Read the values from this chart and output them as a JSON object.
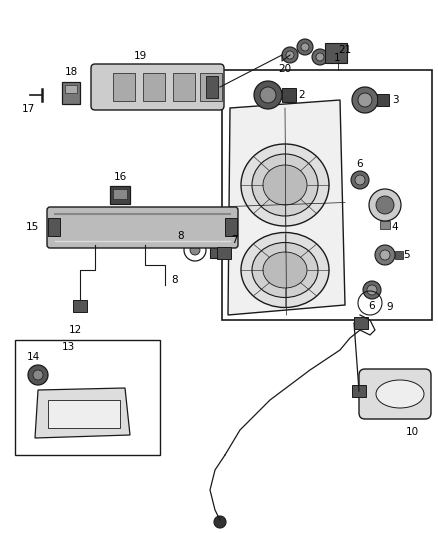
{
  "background_color": "#ffffff",
  "line_color": "#1a1a1a",
  "gray_dark": "#333333",
  "gray_mid": "#666666",
  "gray_light": "#aaaaaa",
  "gray_lighter": "#cccccc",
  "gray_bg": "#e8e8e8"
}
